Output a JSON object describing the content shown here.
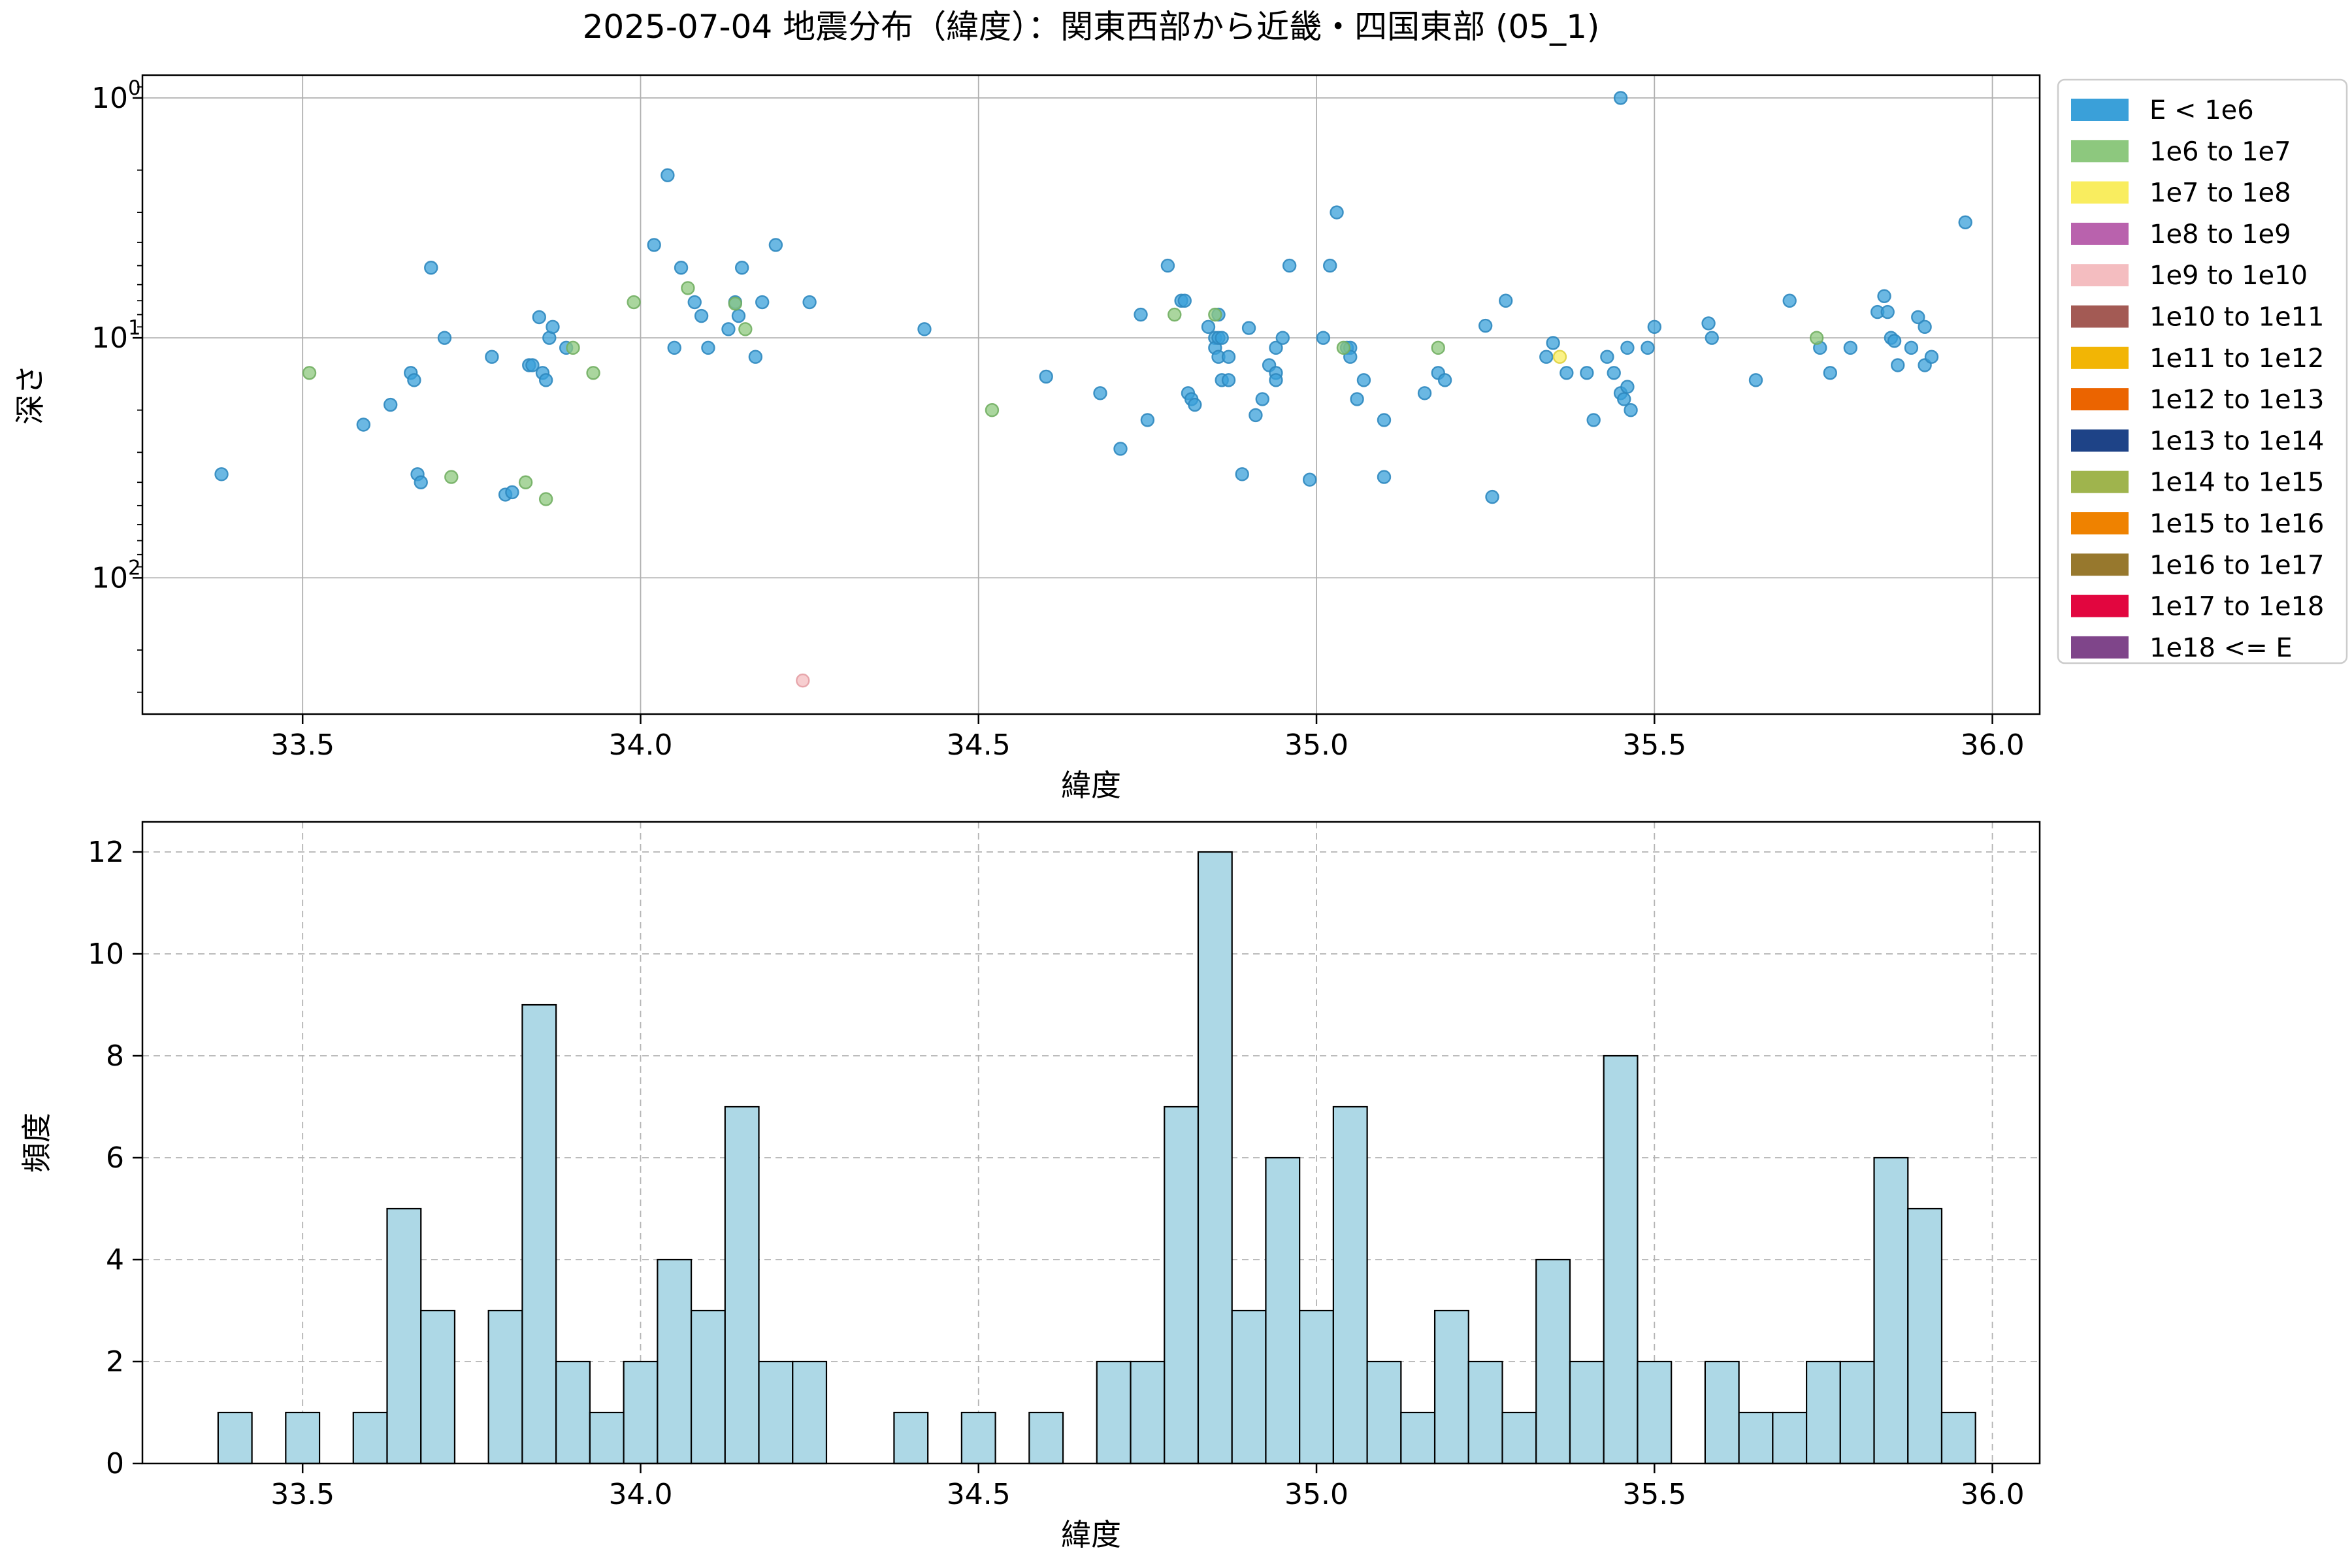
{
  "figure": {
    "title": "2025-07-04 地震分布（緯度）：関東西部から近畿・四国東部 (05_1)",
    "background": "#ffffff"
  },
  "chart_data": [
    {
      "type": "scatter",
      "name": "depth-by-latitude",
      "xlabel": "緯度",
      "ylabel": "深さ",
      "x_ticks": [
        33.5,
        34.0,
        34.5,
        35.0,
        35.5,
        36.0
      ],
      "x_tick_labels": [
        "33.5",
        "34.0",
        "34.5",
        "35.0",
        "35.5",
        "36.0"
      ],
      "xlim": [
        33.263,
        36.07
      ],
      "y_scale": "log10-inverted",
      "y_tick_exponents": [
        0,
        1,
        2
      ],
      "ylim_log": [
        -0.095,
        2.568
      ],
      "grid": "solid",
      "grid_color": "#b0b0b0",
      "legend_position": "outside-right",
      "legend": [
        {
          "label": "E < 1e6",
          "color": "#3AA0D9",
          "edge": "#2F88BF"
        },
        {
          "label": "1e6 to 1e7",
          "color": "#8DC87E",
          "edge": "#72AF63"
        },
        {
          "label": "1e7 to 1e8",
          "color": "#F9ED5F",
          "edge": "#DFD23F"
        },
        {
          "label": "1e8 to 1e9",
          "color": "#B962AD",
          "edge": "#9E4C93"
        },
        {
          "label": "1e9 to 1e10",
          "color": "#F4BDC0",
          "edge": "#E4A0A5"
        },
        {
          "label": "1e10 to 1e11",
          "color": "#A35A54",
          "edge": "#8A4943"
        },
        {
          "label": "1e11 to 1e12",
          "color": "#F2B505",
          "edge": "#D49E00"
        },
        {
          "label": "1e12 to 1e13",
          "color": "#EB6400",
          "edge": "#C95500"
        },
        {
          "label": "1e13 to 1e14",
          "color": "#1E4387",
          "edge": "#173569"
        },
        {
          "label": "1e14 to 1e15",
          "color": "#9FB44D",
          "edge": "#86993C"
        },
        {
          "label": "1e15 to 1e16",
          "color": "#EF8200",
          "edge": "#CC6F00"
        },
        {
          "label": "1e16 to 1e17",
          "color": "#97782D",
          "edge": "#7C6223"
        },
        {
          "label": "1e17 to 1e18",
          "color": "#E2063F",
          "edge": "#BF0434"
        },
        {
          "label": "1e18 <= E",
          "color": "#7F458A",
          "edge": "#683670"
        }
      ],
      "series": [
        {
          "name": "E < 1e6",
          "color": "#3AA0D9",
          "edge": "#2F88BF",
          "points": [
            [
              33.38,
              37
            ],
            [
              33.59,
              23
            ],
            [
              33.63,
              19
            ],
            [
              33.66,
              14
            ],
            [
              33.665,
              15
            ],
            [
              33.67,
              37
            ],
            [
              33.675,
              40
            ],
            [
              33.69,
              5.1
            ],
            [
              33.71,
              10
            ],
            [
              33.78,
              12
            ],
            [
              33.8,
              45
            ],
            [
              33.81,
              44
            ],
            [
              33.835,
              13
            ],
            [
              33.84,
              13
            ],
            [
              33.85,
              8.2
            ],
            [
              33.855,
              14
            ],
            [
              33.86,
              15
            ],
            [
              33.865,
              10
            ],
            [
              33.87,
              9
            ],
            [
              33.89,
              11
            ],
            [
              34.02,
              4.1
            ],
            [
              34.04,
              2.1
            ],
            [
              34.05,
              11
            ],
            [
              34.06,
              5.1
            ],
            [
              34.08,
              7.1
            ],
            [
              34.09,
              8.1
            ],
            [
              34.1,
              11
            ],
            [
              34.13,
              9.2
            ],
            [
              34.14,
              7.1
            ],
            [
              34.145,
              8.1
            ],
            [
              34.15,
              5.1
            ],
            [
              34.17,
              12
            ],
            [
              34.18,
              7.1
            ],
            [
              34.2,
              4.1
            ],
            [
              34.25,
              7.1
            ],
            [
              34.42,
              9.2
            ],
            [
              34.6,
              14.5
            ],
            [
              34.68,
              17
            ],
            [
              34.71,
              29
            ],
            [
              34.74,
              8
            ],
            [
              34.75,
              22
            ],
            [
              34.78,
              5
            ],
            [
              34.8,
              7
            ],
            [
              34.805,
              7
            ],
            [
              34.81,
              17
            ],
            [
              34.815,
              18
            ],
            [
              34.82,
              19
            ],
            [
              34.84,
              9
            ],
            [
              34.85,
              10
            ],
            [
              34.85,
              11
            ],
            [
              34.855,
              8
            ],
            [
              34.855,
              10
            ],
            [
              34.855,
              12
            ],
            [
              34.86,
              10
            ],
            [
              34.86,
              15
            ],
            [
              34.87,
              12
            ],
            [
              34.87,
              15
            ],
            [
              34.89,
              37
            ],
            [
              34.9,
              9.1
            ],
            [
              34.91,
              21
            ],
            [
              34.92,
              18
            ],
            [
              34.93,
              13
            ],
            [
              34.94,
              11
            ],
            [
              34.94,
              14
            ],
            [
              34.94,
              15
            ],
            [
              34.95,
              10
            ],
            [
              34.96,
              5
            ],
            [
              34.99,
              39
            ],
            [
              35.01,
              10
            ],
            [
              35.02,
              5
            ],
            [
              35.03,
              3
            ],
            [
              35.045,
              11
            ],
            [
              35.05,
              11
            ],
            [
              35.05,
              12
            ],
            [
              35.06,
              18
            ],
            [
              35.07,
              15
            ],
            [
              35.1,
              22
            ],
            [
              35.1,
              38
            ],
            [
              35.16,
              17
            ],
            [
              35.18,
              14
            ],
            [
              35.19,
              15
            ],
            [
              35.25,
              8.9
            ],
            [
              35.26,
              46
            ],
            [
              35.28,
              7
            ],
            [
              35.34,
              12
            ],
            [
              35.35,
              10.5
            ],
            [
              35.37,
              14
            ],
            [
              35.4,
              14
            ],
            [
              35.41,
              22
            ],
            [
              35.43,
              12
            ],
            [
              35.44,
              14
            ],
            [
              35.45,
              1
            ],
            [
              35.45,
              17
            ],
            [
              35.455,
              18
            ],
            [
              35.46,
              11
            ],
            [
              35.46,
              16
            ],
            [
              35.465,
              20
            ],
            [
              35.49,
              11
            ],
            [
              35.5,
              9
            ],
            [
              35.58,
              8.7
            ],
            [
              35.585,
              10
            ],
            [
              35.65,
              15
            ],
            [
              35.7,
              7
            ],
            [
              35.745,
              11
            ],
            [
              35.76,
              14
            ],
            [
              35.79,
              11
            ],
            [
              35.83,
              7.8
            ],
            [
              35.84,
              6.7
            ],
            [
              35.845,
              7.8
            ],
            [
              35.85,
              10
            ],
            [
              35.855,
              10.3
            ],
            [
              35.86,
              13
            ],
            [
              35.88,
              11
            ],
            [
              35.89,
              8.2
            ],
            [
              35.9,
              9
            ],
            [
              35.9,
              13
            ],
            [
              35.91,
              12
            ],
            [
              35.96,
              3.3
            ]
          ]
        },
        {
          "name": "1e6 to 1e7",
          "color": "#8DC87E",
          "edge": "#72AF63",
          "points": [
            [
              33.51,
              14
            ],
            [
              33.72,
              38
            ],
            [
              33.83,
              40
            ],
            [
              33.86,
              47
            ],
            [
              33.9,
              11
            ],
            [
              33.93,
              14
            ],
            [
              33.99,
              7.1
            ],
            [
              34.07,
              6.2
            ],
            [
              34.14,
              7.2
            ],
            [
              34.155,
              9.2
            ],
            [
              34.52,
              20
            ],
            [
              34.79,
              8
            ],
            [
              34.85,
              8
            ],
            [
              35.04,
              11
            ],
            [
              35.18,
              11
            ],
            [
              35.74,
              10
            ]
          ]
        },
        {
          "name": "1e7 to 1e8",
          "color": "#F9ED5F",
          "edge": "#DFD23F",
          "points": [
            [
              35.36,
              12
            ]
          ]
        },
        {
          "name": "1e9 to 1e10",
          "color": "#F4BDC0",
          "edge": "#E4A0A5",
          "points": [
            [
              34.24,
              268
            ]
          ]
        }
      ]
    },
    {
      "type": "bar",
      "name": "latitude-histogram",
      "xlabel": "緯度",
      "ylabel": "頻度",
      "x_ticks": [
        33.5,
        34.0,
        34.5,
        35.0,
        35.5,
        36.0
      ],
      "x_tick_labels": [
        "33.5",
        "34.0",
        "34.5",
        "35.0",
        "35.5",
        "36.0"
      ],
      "xlim": [
        33.263,
        36.07
      ],
      "ylim": [
        0,
        12.59
      ],
      "y_ticks": [
        0,
        2,
        4,
        6,
        8,
        10,
        12
      ],
      "grid": "dashed",
      "grid_color": "#b3b3b3",
      "bar_color": "#ADD8E6",
      "bar_edge_color": "#000000",
      "bin_width": 0.05,
      "bars": [
        [
          33.4,
          1
        ],
        [
          33.5,
          1
        ],
        [
          33.6,
          1
        ],
        [
          33.65,
          5
        ],
        [
          33.7,
          3
        ],
        [
          33.8,
          3
        ],
        [
          33.85,
          9
        ],
        [
          33.9,
          2
        ],
        [
          33.95,
          1
        ],
        [
          34.0,
          2
        ],
        [
          34.05,
          4
        ],
        [
          34.1,
          3
        ],
        [
          34.15,
          7
        ],
        [
          34.2,
          2
        ],
        [
          34.25,
          2
        ],
        [
          34.4,
          1
        ],
        [
          34.5,
          1
        ],
        [
          34.6,
          1
        ],
        [
          34.7,
          2
        ],
        [
          34.75,
          2
        ],
        [
          34.8,
          7
        ],
        [
          34.85,
          12
        ],
        [
          34.9,
          3
        ],
        [
          34.95,
          6
        ],
        [
          35.0,
          3
        ],
        [
          35.05,
          7
        ],
        [
          35.1,
          2
        ],
        [
          35.15,
          1
        ],
        [
          35.2,
          3
        ],
        [
          35.25,
          2
        ],
        [
          35.3,
          1
        ],
        [
          35.35,
          4
        ],
        [
          35.4,
          2
        ],
        [
          35.45,
          8
        ],
        [
          35.5,
          2
        ],
        [
          35.6,
          2
        ],
        [
          35.65,
          1
        ],
        [
          35.7,
          1
        ],
        [
          35.75,
          2
        ],
        [
          35.8,
          2
        ],
        [
          35.85,
          6
        ],
        [
          35.9,
          5
        ],
        [
          35.95,
          1
        ]
      ]
    }
  ]
}
